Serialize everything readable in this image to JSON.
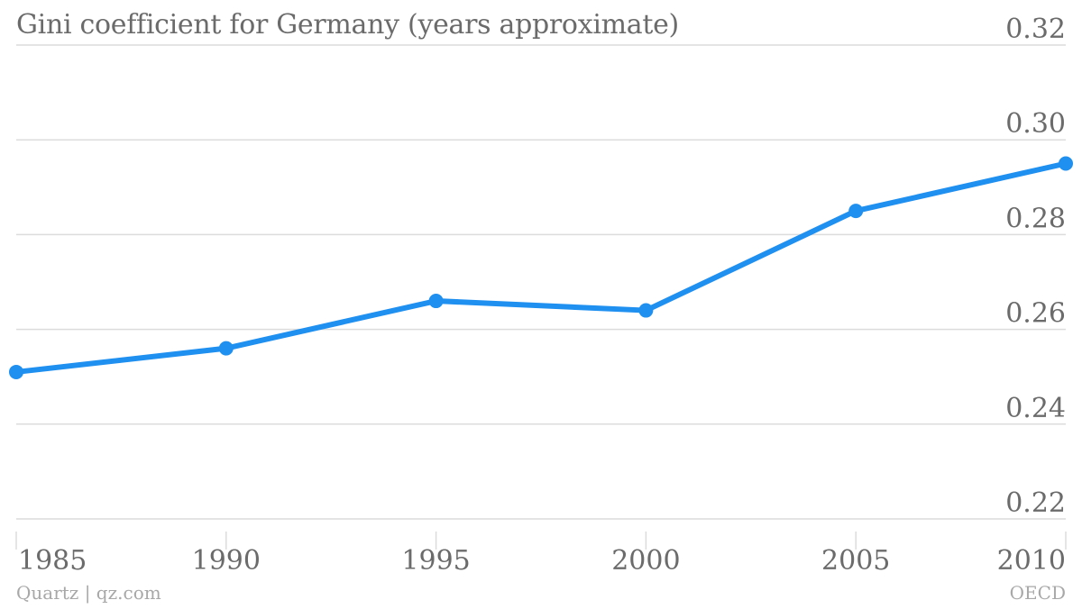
{
  "chart_data": {
    "type": "line",
    "title": "Gini coefficient for Germany (years approximate)",
    "xlabel": "",
    "ylabel": "",
    "x": [
      "1985",
      "1990",
      "1995",
      "2000",
      "2005",
      "2010"
    ],
    "series": [
      {
        "values": [
          0.251,
          0.256,
          0.266,
          0.264,
          0.285,
          0.295
        ]
      }
    ],
    "ylim": [
      0.22,
      0.32
    ],
    "yticks": [
      "0.32",
      "0.30",
      "0.28",
      "0.26",
      "0.24",
      "0.22"
    ],
    "ytick_values": [
      0.32,
      0.3,
      0.28,
      0.26,
      0.24,
      0.22
    ],
    "yaxis_side": "right",
    "grid": true,
    "legend": "none"
  },
  "footer": {
    "source_left": "Quartz | qz.com",
    "source_right": "OECD"
  },
  "colors": {
    "line": "#1f8ff0",
    "grid": "#dcdcdc",
    "tick_text": "#6b6b6b",
    "footer_text": "#a8a8a8"
  }
}
